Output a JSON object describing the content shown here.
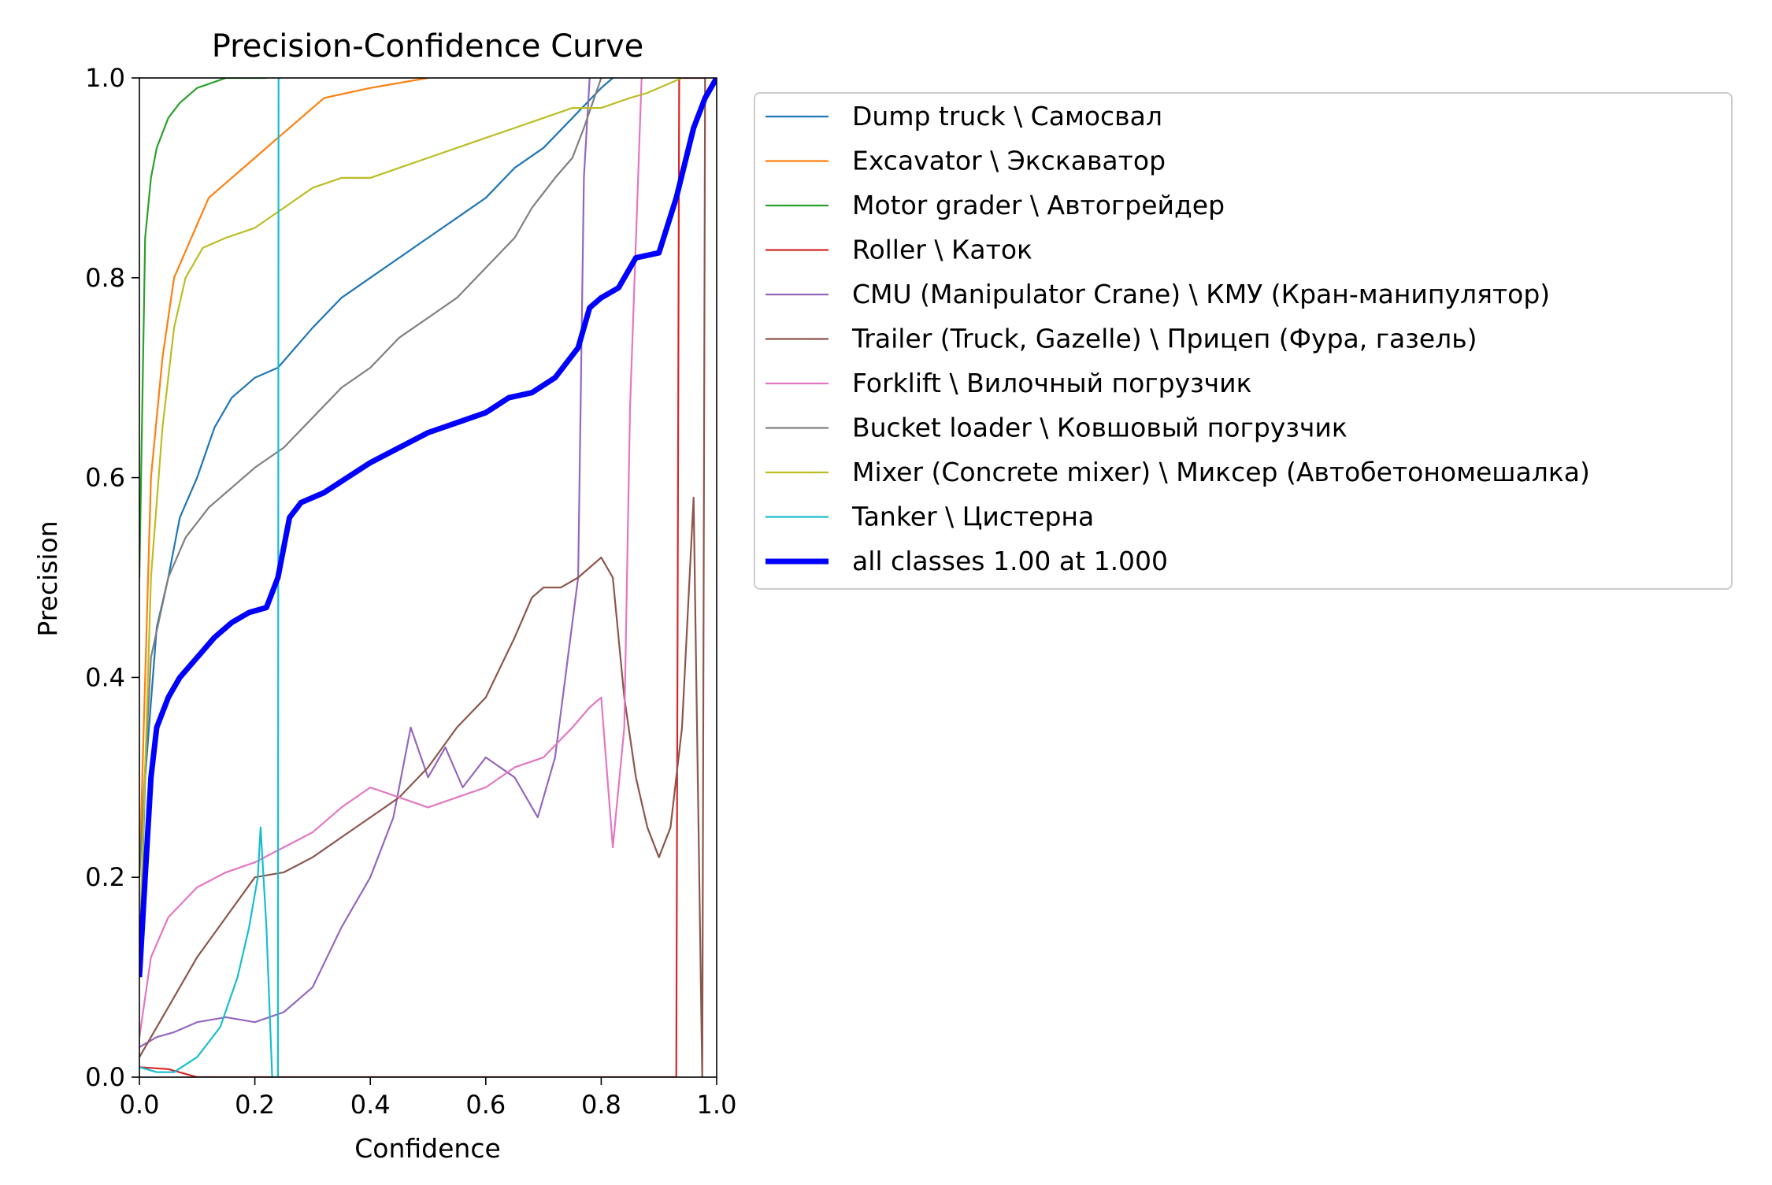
{
  "chart_data": {
    "type": "line",
    "title": "Precision-Confidence Curve",
    "xlabel": "Confidence",
    "ylabel": "Precision",
    "xlim": [
      0.0,
      1.0
    ],
    "ylim": [
      0.0,
      1.0
    ],
    "x_ticks": [
      "0.0",
      "0.2",
      "0.4",
      "0.6",
      "0.8",
      "1.0"
    ],
    "y_ticks": [
      "0.0",
      "0.2",
      "0.4",
      "0.6",
      "0.8",
      "1.0"
    ],
    "grid": false,
    "legend_position": "outside right",
    "series": [
      {
        "name": "Dump truck \\ Самосвал",
        "color": "#1f77b4",
        "points": [
          [
            0.0,
            0.1
          ],
          [
            0.01,
            0.3
          ],
          [
            0.03,
            0.45
          ],
          [
            0.05,
            0.5
          ],
          [
            0.07,
            0.56
          ],
          [
            0.1,
            0.6
          ],
          [
            0.13,
            0.65
          ],
          [
            0.16,
            0.68
          ],
          [
            0.2,
            0.7
          ],
          [
            0.24,
            0.71
          ],
          [
            0.27,
            0.73
          ],
          [
            0.3,
            0.75
          ],
          [
            0.35,
            0.78
          ],
          [
            0.4,
            0.8
          ],
          [
            0.45,
            0.82
          ],
          [
            0.5,
            0.84
          ],
          [
            0.55,
            0.86
          ],
          [
            0.6,
            0.88
          ],
          [
            0.65,
            0.91
          ],
          [
            0.7,
            0.93
          ],
          [
            0.75,
            0.96
          ],
          [
            0.8,
            0.99
          ],
          [
            0.82,
            1.0
          ]
        ]
      },
      {
        "name": "Excavator \\ Экскаватор",
        "color": "#ff7f0e",
        "points": [
          [
            0.0,
            0.2
          ],
          [
            0.02,
            0.6
          ],
          [
            0.04,
            0.72
          ],
          [
            0.06,
            0.8
          ],
          [
            0.09,
            0.84
          ],
          [
            0.12,
            0.88
          ],
          [
            0.16,
            0.9
          ],
          [
            0.2,
            0.92
          ],
          [
            0.24,
            0.94
          ],
          [
            0.28,
            0.96
          ],
          [
            0.32,
            0.98
          ],
          [
            0.4,
            0.99
          ],
          [
            0.5,
            1.0
          ]
        ]
      },
      {
        "name": "Motor grader \\ Автогрейдер",
        "color": "#2ca02c",
        "points": [
          [
            0.0,
            0.5
          ],
          [
            0.01,
            0.84
          ],
          [
            0.02,
            0.9
          ],
          [
            0.03,
            0.93
          ],
          [
            0.05,
            0.96
          ],
          [
            0.07,
            0.975
          ],
          [
            0.1,
            0.99
          ],
          [
            0.15,
            1.0
          ],
          [
            0.22,
            1.0
          ]
        ]
      },
      {
        "name": "Roller \\ Каток",
        "color": "#d62728",
        "points": [
          [
            0.0,
            0.01
          ],
          [
            0.05,
            0.008
          ],
          [
            0.1,
            0.0
          ],
          [
            0.2,
            0.0
          ],
          [
            0.4,
            0.0
          ],
          [
            0.6,
            0.0
          ],
          [
            0.8,
            0.0
          ],
          [
            0.93,
            0.0
          ],
          [
            0.935,
            1.0
          ],
          [
            0.96,
            1.0
          ],
          [
            0.98,
            1.0
          ]
        ]
      },
      {
        "name": "CMU (Manipulator Crane) \\ КМУ (Кран-манипулятор)",
        "color": "#9467bd",
        "points": [
          [
            0.0,
            0.03
          ],
          [
            0.03,
            0.04
          ],
          [
            0.06,
            0.045
          ],
          [
            0.1,
            0.055
          ],
          [
            0.15,
            0.06
          ],
          [
            0.2,
            0.055
          ],
          [
            0.25,
            0.065
          ],
          [
            0.3,
            0.09
          ],
          [
            0.35,
            0.15
          ],
          [
            0.4,
            0.2
          ],
          [
            0.44,
            0.26
          ],
          [
            0.47,
            0.35
          ],
          [
            0.5,
            0.3
          ],
          [
            0.53,
            0.33
          ],
          [
            0.56,
            0.29
          ],
          [
            0.6,
            0.32
          ],
          [
            0.65,
            0.3
          ],
          [
            0.69,
            0.26
          ],
          [
            0.72,
            0.32
          ],
          [
            0.76,
            0.5
          ],
          [
            0.77,
            0.9
          ],
          [
            0.78,
            1.0
          ]
        ]
      },
      {
        "name": "Trailer (Truck, Gazelle) \\ Прицеп (Фура, газель)",
        "color": "#8c564b",
        "points": [
          [
            0.0,
            0.02
          ],
          [
            0.05,
            0.07
          ],
          [
            0.1,
            0.12
          ],
          [
            0.15,
            0.16
          ],
          [
            0.2,
            0.2
          ],
          [
            0.25,
            0.205
          ],
          [
            0.3,
            0.22
          ],
          [
            0.35,
            0.24
          ],
          [
            0.4,
            0.26
          ],
          [
            0.45,
            0.28
          ],
          [
            0.5,
            0.31
          ],
          [
            0.55,
            0.35
          ],
          [
            0.6,
            0.38
          ],
          [
            0.65,
            0.44
          ],
          [
            0.68,
            0.48
          ],
          [
            0.7,
            0.49
          ],
          [
            0.73,
            0.49
          ],
          [
            0.76,
            0.5
          ],
          [
            0.8,
            0.52
          ],
          [
            0.82,
            0.5
          ],
          [
            0.84,
            0.38
          ],
          [
            0.86,
            0.3
          ],
          [
            0.88,
            0.25
          ],
          [
            0.9,
            0.22
          ],
          [
            0.92,
            0.25
          ],
          [
            0.94,
            0.35
          ],
          [
            0.96,
            0.58
          ],
          [
            0.975,
            0.0
          ],
          [
            0.98,
            1.0
          ]
        ]
      },
      {
        "name": "Forklift \\ Вилочный погрузчик",
        "color": "#e377c2",
        "points": [
          [
            0.0,
            0.04
          ],
          [
            0.02,
            0.12
          ],
          [
            0.05,
            0.16
          ],
          [
            0.1,
            0.19
          ],
          [
            0.15,
            0.205
          ],
          [
            0.2,
            0.215
          ],
          [
            0.25,
            0.23
          ],
          [
            0.3,
            0.245
          ],
          [
            0.35,
            0.27
          ],
          [
            0.4,
            0.29
          ],
          [
            0.45,
            0.28
          ],
          [
            0.5,
            0.27
          ],
          [
            0.55,
            0.28
          ],
          [
            0.6,
            0.29
          ],
          [
            0.65,
            0.31
          ],
          [
            0.7,
            0.32
          ],
          [
            0.75,
            0.35
          ],
          [
            0.78,
            0.37
          ],
          [
            0.8,
            0.38
          ],
          [
            0.82,
            0.23
          ],
          [
            0.84,
            0.35
          ],
          [
            0.85,
            0.67
          ],
          [
            0.87,
            1.0
          ]
        ]
      },
      {
        "name": "Bucket loader \\ Ковшовый погрузчик",
        "color": "#7f7f7f",
        "points": [
          [
            0.0,
            0.2
          ],
          [
            0.02,
            0.42
          ],
          [
            0.05,
            0.5
          ],
          [
            0.08,
            0.54
          ],
          [
            0.12,
            0.57
          ],
          [
            0.16,
            0.59
          ],
          [
            0.2,
            0.61
          ],
          [
            0.25,
            0.63
          ],
          [
            0.3,
            0.66
          ],
          [
            0.35,
            0.69
          ],
          [
            0.4,
            0.71
          ],
          [
            0.45,
            0.74
          ],
          [
            0.5,
            0.76
          ],
          [
            0.55,
            0.78
          ],
          [
            0.6,
            0.81
          ],
          [
            0.65,
            0.84
          ],
          [
            0.68,
            0.87
          ],
          [
            0.72,
            0.9
          ],
          [
            0.75,
            0.92
          ],
          [
            0.77,
            0.95
          ],
          [
            0.8,
            1.0
          ]
        ]
      },
      {
        "name": "Mixer (Concrete mixer) \\ Миксер (Автобетономешалка)",
        "color": "#bcbd22",
        "points": [
          [
            0.0,
            0.12
          ],
          [
            0.02,
            0.5
          ],
          [
            0.04,
            0.65
          ],
          [
            0.06,
            0.75
          ],
          [
            0.08,
            0.8
          ],
          [
            0.11,
            0.83
          ],
          [
            0.15,
            0.84
          ],
          [
            0.2,
            0.85
          ],
          [
            0.25,
            0.87
          ],
          [
            0.3,
            0.89
          ],
          [
            0.35,
            0.9
          ],
          [
            0.4,
            0.9
          ],
          [
            0.45,
            0.91
          ],
          [
            0.5,
            0.92
          ],
          [
            0.55,
            0.93
          ],
          [
            0.6,
            0.94
          ],
          [
            0.65,
            0.95
          ],
          [
            0.7,
            0.96
          ],
          [
            0.75,
            0.97
          ],
          [
            0.8,
            0.97
          ],
          [
            0.85,
            0.98
          ],
          [
            0.88,
            0.985
          ],
          [
            0.94,
            1.0
          ]
        ]
      },
      {
        "name": "Tanker \\ Цистерна",
        "color": "#17becf",
        "points": [
          [
            0.0,
            0.01
          ],
          [
            0.03,
            0.005
          ],
          [
            0.06,
            0.005
          ],
          [
            0.1,
            0.02
          ],
          [
            0.14,
            0.05
          ],
          [
            0.17,
            0.1
          ],
          [
            0.19,
            0.15
          ],
          [
            0.205,
            0.2
          ],
          [
            0.21,
            0.25
          ],
          [
            0.22,
            0.15
          ],
          [
            0.23,
            0.0
          ],
          [
            0.24,
            0.0
          ],
          [
            0.241,
            1.0
          ],
          [
            0.245,
            1.0
          ]
        ]
      },
      {
        "name": "all classes 1.00 at 1.000",
        "color": "#0000ff",
        "thick": true,
        "points": [
          [
            0.0,
            0.1
          ],
          [
            0.01,
            0.2
          ],
          [
            0.02,
            0.3
          ],
          [
            0.03,
            0.35
          ],
          [
            0.05,
            0.38
          ],
          [
            0.07,
            0.4
          ],
          [
            0.1,
            0.42
          ],
          [
            0.13,
            0.44
          ],
          [
            0.16,
            0.455
          ],
          [
            0.19,
            0.465
          ],
          [
            0.22,
            0.47
          ],
          [
            0.24,
            0.5
          ],
          [
            0.26,
            0.56
          ],
          [
            0.28,
            0.575
          ],
          [
            0.32,
            0.585
          ],
          [
            0.36,
            0.6
          ],
          [
            0.4,
            0.615
          ],
          [
            0.45,
            0.63
          ],
          [
            0.5,
            0.645
          ],
          [
            0.55,
            0.655
          ],
          [
            0.6,
            0.665
          ],
          [
            0.64,
            0.68
          ],
          [
            0.68,
            0.685
          ],
          [
            0.72,
            0.7
          ],
          [
            0.76,
            0.73
          ],
          [
            0.78,
            0.77
          ],
          [
            0.8,
            0.78
          ],
          [
            0.83,
            0.79
          ],
          [
            0.86,
            0.82
          ],
          [
            0.9,
            0.825
          ],
          [
            0.93,
            0.88
          ],
          [
            0.96,
            0.95
          ],
          [
            0.98,
            0.98
          ],
          [
            1.0,
            1.0
          ]
        ]
      }
    ]
  }
}
